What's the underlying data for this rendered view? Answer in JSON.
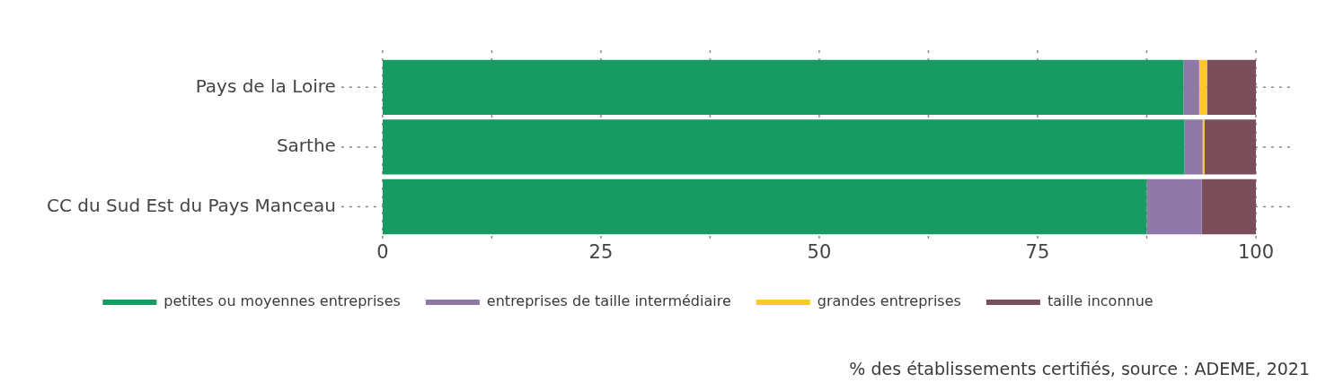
{
  "chart_data": {
    "type": "bar",
    "orientation": "horizontal",
    "stacked": true,
    "categories": [
      "Pays de la Loire",
      "Sarthe",
      "CC du Sud Est du Pays Manceau"
    ],
    "series": [
      {
        "name": "petites ou moyennes entreprises",
        "color": "#169b62",
        "values": [
          91.7,
          91.8,
          87.5
        ]
      },
      {
        "name": "entreprises de taille intermédiaire",
        "color": "#8f78a7",
        "values": [
          1.8,
          2.1,
          6.3
        ]
      },
      {
        "name": "grandes entreprises",
        "color": "#ffc829",
        "values": [
          0.9,
          0.2,
          0
        ]
      },
      {
        "name": "taille inconnue",
        "color": "#7a4e5a",
        "values": [
          5.6,
          5.9,
          6.2
        ]
      }
    ],
    "xlim": [
      0,
      100
    ],
    "xticks": [
      0,
      {
        "value": 12.5,
        "label": null
      },
      25,
      {
        "value": 37.5,
        "label": null
      },
      50,
      {
        "value": 62.5,
        "label": null
      },
      75,
      {
        "value": 87.5,
        "label": null
      },
      100
    ],
    "grid": true,
    "legend": "bottom",
    "annotations": [
      "% des établissements certifiés, source : ADEME, 2021"
    ]
  }
}
